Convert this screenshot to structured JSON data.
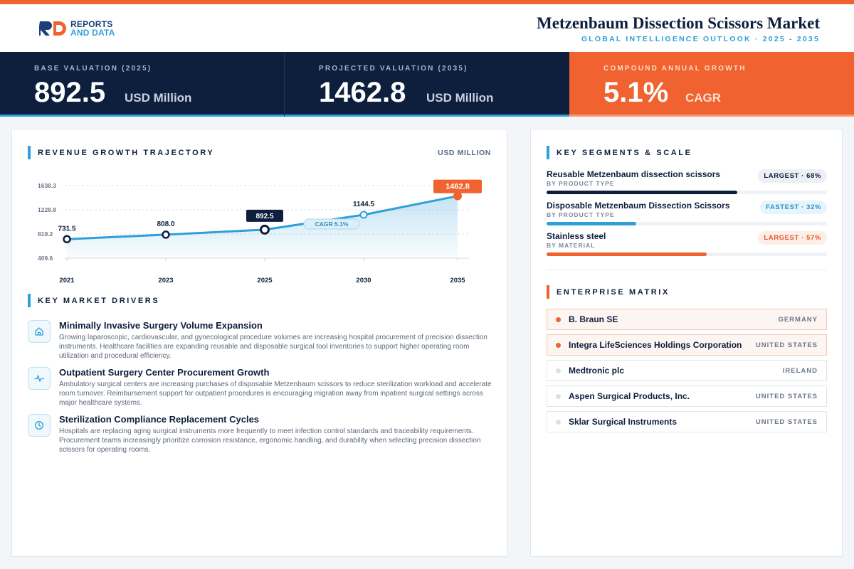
{
  "brand": {
    "logo_text_1": "REPORTS",
    "logo_text_2": "AND DATA"
  },
  "header": {
    "title": "Metzenbaum Dissection Scissors Market",
    "subtitle": "GLOBAL INTELLIGENCE OUTLOOK  ·  2025 - 2035"
  },
  "kpis": [
    {
      "label": "BASE VALUATION (2025)",
      "value": "892.5",
      "unit": "USD Million"
    },
    {
      "label": "PROJECTED VALUATION (2035)",
      "value": "1462.8",
      "unit": "USD Million"
    },
    {
      "label": "COMPOUND ANNUAL GROWTH",
      "value": "5.1%",
      "unit": "CAGR"
    }
  ],
  "revenue": {
    "heading": "REVENUE GROWTH TRAJECTORY",
    "unit_label": "USD MILLION",
    "cagr_pill": "CAGR 5.1%"
  },
  "chart_data": {
    "type": "area",
    "x": [
      "2021",
      "2023",
      "2025",
      "2030",
      "2035"
    ],
    "series": [
      {
        "values": [
          731.5,
          808.0,
          892.5,
          1144.5,
          1462.8
        ]
      }
    ],
    "data_labels": [
      "731.5",
      "808.0",
      "892.5",
      "1144.5",
      "1462.8"
    ],
    "y_ticks": [
      "1638.3",
      "1228.8",
      "819.2",
      "409.6"
    ],
    "ylim": [
      409.6,
      1638.3
    ],
    "grid": true,
    "colors": {
      "line": "#2f9fd8",
      "base_marker": "#0e1f3d",
      "final_marker": "#f0622f"
    }
  },
  "drivers": {
    "heading": "KEY MARKET DRIVERS",
    "items": [
      {
        "icon": "hospital-icon",
        "title": "Minimally Invasive Surgery Volume Expansion",
        "desc": "Growing laparoscopic, cardiovascular, and gynecological procedure volumes are increasing hospital procurement of precision dissection instruments. Healthcare facilities are expanding reusable and disposable surgical tool inventories to support higher operating room utilization and procedural efficiency."
      },
      {
        "icon": "pulse-icon",
        "title": "Outpatient Surgery Center Procurement Growth",
        "desc": "Ambulatory surgical centers are increasing purchases of disposable Metzenbaum scissors to reduce sterilization workload and accelerate room turnover. Reimbursement support for outpatient procedures is encouraging migration away from inpatient surgical settings across major healthcare systems."
      },
      {
        "icon": "clock-icon",
        "title": "Sterilization Compliance Replacement Cycles",
        "desc": "Hospitals are replacing aging surgical instruments more frequently to meet infection control standards and traceability requirements. Procurement teams increasingly prioritize corrosion resistance, ergonomic handling, and durability when selecting precision dissection scissors for operating rooms."
      }
    ]
  },
  "segments": {
    "heading": "KEY SEGMENTS & SCALE",
    "items": [
      {
        "name": "Reusable Metzenbaum dissection scissors",
        "category": "BY PRODUCT TYPE",
        "badge": "LARGEST · 68%",
        "share": 0.68,
        "color": "#0e1f3d",
        "badge_bg": "#eceff4",
        "badge_fg": "#0e1f3d"
      },
      {
        "name": "Disposable Metzenbaum Dissection Scissors",
        "category": "BY PRODUCT TYPE",
        "badge": "FASTEST · 32%",
        "share": 0.32,
        "color": "#2f9fd8",
        "badge_bg": "#e6f4fb",
        "badge_fg": "#2f8fc4"
      },
      {
        "name": "Stainless steel",
        "category": "BY MATERIAL",
        "badge": "LARGEST · 57%",
        "share": 0.57,
        "color": "#f0622f",
        "badge_bg": "#fdeee7",
        "badge_fg": "#e2582a"
      }
    ]
  },
  "enterprise": {
    "heading": "ENTERPRISE MATRIX",
    "companies": [
      {
        "name": "B. Braun SE",
        "country": "GERMANY"
      },
      {
        "name": "Integra LifeSciences Holdings Corporation",
        "country": "UNITED STATES"
      },
      {
        "name": "Medtronic plc",
        "country": "IRELAND"
      },
      {
        "name": "Aspen Surgical Products, Inc.",
        "country": "UNITED STATES"
      },
      {
        "name": "Sklar Surgical Instruments",
        "country": "UNITED STATES"
      }
    ]
  }
}
